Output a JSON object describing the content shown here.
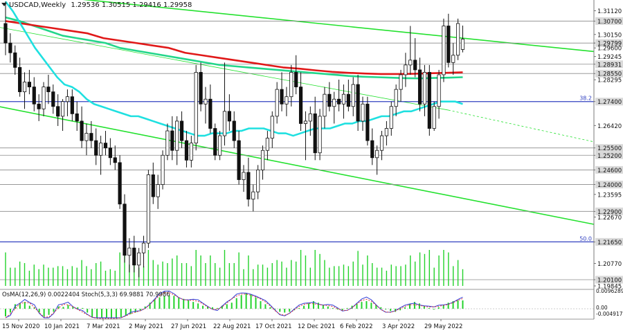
{
  "header": {
    "symbol": "USDCAD",
    "timeframe": "Weekly",
    "ohlc": "1.29536 1.30515 1.29416 1.29958"
  },
  "indicator_header": "OsMA(12,26,9) 0.0022404  Stoch(5,3,3) 69.9881 70.9986",
  "colors": {
    "background": "#ffffff",
    "price_label_bg": "#d9d9d9",
    "ema_fast": "#1fe0e0",
    "ema_mid": "#22d68a",
    "ema_slow": "#e01818",
    "channel": "#23e12e",
    "level_line": "#3040c0",
    "stoch_main": "#2f3bd6",
    "stoch_signal": "#e03030",
    "osma_bar": "#22d22a"
  },
  "chart_data": {
    "type": "candlestick",
    "symbol": "USDCAD",
    "timeframe": "Weekly",
    "ylim": [
      1.19845,
      1.3145
    ],
    "x_tick_labels": [
      "15 Nov 2020",
      "10 Jan 2021",
      "7 Mar 2021",
      "2 May 2021",
      "27 Jun 2021",
      "22 Aug 2021",
      "17 Oct 2021",
      "12 Dec 2021",
      "6 Feb 2022",
      "3 Apr 2022",
      "29 May 2022"
    ],
    "y_tick_labels": [
      "1.31120",
      "1.30700",
      "1.30150",
      "1.29800",
      "1.29799",
      "1.29600",
      "1.29245",
      "1.28931",
      "1.28550",
      "1.28295",
      "1.27400",
      "1.26420",
      "1.25500",
      "1.25200",
      "1.24600",
      "1.24000",
      "1.23595",
      "1.22900",
      "1.22670",
      "1.21650",
      "1.20770",
      "1.20100",
      "1.19845"
    ],
    "highlighted_levels": [
      1.307,
      1.29799,
      1.28931,
      1.2855,
      1.274,
      1.255,
      1.252,
      1.246,
      1.24,
      1.229,
      1.2165,
      1.201
    ],
    "fib_levels": [
      {
        "label": "38.2",
        "value": 1.274
      },
      {
        "label": "50.0",
        "value": 1.2165
      }
    ],
    "ohlc": [
      [
        1.306,
        1.315,
        1.293,
        1.298
      ],
      [
        1.298,
        1.302,
        1.29,
        1.294
      ],
      [
        1.294,
        1.297,
        1.285,
        1.288
      ],
      [
        1.288,
        1.292,
        1.276,
        1.278
      ],
      [
        1.278,
        1.286,
        1.271,
        1.282
      ],
      [
        1.282,
        1.287,
        1.277,
        1.28
      ],
      [
        1.28,
        1.284,
        1.27,
        1.273
      ],
      [
        1.273,
        1.277,
        1.266,
        1.271
      ],
      [
        1.271,
        1.282,
        1.268,
        1.28
      ],
      [
        1.28,
        1.285,
        1.273,
        1.278
      ],
      [
        1.278,
        1.281,
        1.269,
        1.272
      ],
      [
        1.272,
        1.277,
        1.264,
        1.268
      ],
      [
        1.268,
        1.275,
        1.262,
        1.274
      ],
      [
        1.274,
        1.279,
        1.268,
        1.276
      ],
      [
        1.276,
        1.279,
        1.266,
        1.269
      ],
      [
        1.269,
        1.274,
        1.262,
        1.266
      ],
      [
        1.266,
        1.272,
        1.255,
        1.258
      ],
      [
        1.258,
        1.265,
        1.252,
        1.261
      ],
      [
        1.261,
        1.266,
        1.255,
        1.258
      ],
      [
        1.258,
        1.263,
        1.248,
        1.252
      ],
      [
        1.252,
        1.26,
        1.244,
        1.257
      ],
      [
        1.257,
        1.262,
        1.252,
        1.255
      ],
      [
        1.255,
        1.259,
        1.248,
        1.251
      ],
      [
        1.251,
        1.256,
        1.246,
        1.249
      ],
      [
        1.249,
        1.252,
        1.23,
        1.232
      ],
      [
        1.232,
        1.236,
        1.208,
        1.211
      ],
      [
        1.211,
        1.218,
        1.204,
        1.214
      ],
      [
        1.214,
        1.219,
        1.204,
        1.207
      ],
      [
        1.207,
        1.214,
        1.202,
        1.212
      ],
      [
        1.212,
        1.219,
        1.206,
        1.216
      ],
      [
        1.216,
        1.246,
        1.214,
        1.244
      ],
      [
        1.244,
        1.249,
        1.232,
        1.235
      ],
      [
        1.235,
        1.244,
        1.23,
        1.24
      ],
      [
        1.24,
        1.254,
        1.238,
        1.252
      ],
      [
        1.252,
        1.265,
        1.25,
        1.262
      ],
      [
        1.262,
        1.268,
        1.25,
        1.254
      ],
      [
        1.254,
        1.268,
        1.248,
        1.266
      ],
      [
        1.266,
        1.27,
        1.255,
        1.258
      ],
      [
        1.258,
        1.262,
        1.247,
        1.25
      ],
      [
        1.25,
        1.26,
        1.247,
        1.257
      ],
      [
        1.257,
        1.289,
        1.254,
        1.286
      ],
      [
        1.286,
        1.29,
        1.27,
        1.273
      ],
      [
        1.273,
        1.28,
        1.265,
        1.275
      ],
      [
        1.275,
        1.281,
        1.261,
        1.263
      ],
      [
        1.263,
        1.265,
        1.25,
        1.252
      ],
      [
        1.252,
        1.262,
        1.25,
        1.26
      ],
      [
        1.26,
        1.29,
        1.256,
        1.27
      ],
      [
        1.27,
        1.277,
        1.262,
        1.266
      ],
      [
        1.266,
        1.27,
        1.255,
        1.258
      ],
      [
        1.258,
        1.262,
        1.24,
        1.242
      ],
      [
        1.242,
        1.248,
        1.237,
        1.245
      ],
      [
        1.245,
        1.251,
        1.231,
        1.234
      ],
      [
        1.234,
        1.24,
        1.229,
        1.237
      ],
      [
        1.237,
        1.248,
        1.234,
        1.246
      ],
      [
        1.246,
        1.256,
        1.242,
        1.254
      ],
      [
        1.254,
        1.262,
        1.25,
        1.259
      ],
      [
        1.259,
        1.27,
        1.255,
        1.268
      ],
      [
        1.268,
        1.282,
        1.265,
        1.279
      ],
      [
        1.279,
        1.286,
        1.27,
        1.273
      ],
      [
        1.273,
        1.28,
        1.268,
        1.276
      ],
      [
        1.276,
        1.289,
        1.272,
        1.286
      ],
      [
        1.286,
        1.293,
        1.277,
        1.28
      ],
      [
        1.28,
        1.286,
        1.262,
        1.265
      ],
      [
        1.265,
        1.27,
        1.25,
        1.266
      ],
      [
        1.266,
        1.272,
        1.26,
        1.269
      ],
      [
        1.269,
        1.276,
        1.25,
        1.253
      ],
      [
        1.253,
        1.271,
        1.25,
        1.268
      ],
      [
        1.268,
        1.28,
        1.263,
        1.277
      ],
      [
        1.277,
        1.282,
        1.27,
        1.272
      ],
      [
        1.272,
        1.278,
        1.265,
        1.275
      ],
      [
        1.275,
        1.283,
        1.27,
        1.273
      ],
      [
        1.273,
        1.281,
        1.267,
        1.277
      ],
      [
        1.277,
        1.283,
        1.27,
        1.272
      ],
      [
        1.272,
        1.284,
        1.268,
        1.281
      ],
      [
        1.281,
        1.285,
        1.262,
        1.266
      ],
      [
        1.266,
        1.276,
        1.262,
        1.273
      ],
      [
        1.273,
        1.276,
        1.256,
        1.258
      ],
      [
        1.258,
        1.263,
        1.248,
        1.251
      ],
      [
        1.251,
        1.256,
        1.244,
        1.254
      ],
      [
        1.254,
        1.262,
        1.25,
        1.26
      ],
      [
        1.26,
        1.266,
        1.256,
        1.263
      ],
      [
        1.263,
        1.274,
        1.26,
        1.272
      ],
      [
        1.272,
        1.281,
        1.268,
        1.279
      ],
      [
        1.279,
        1.287,
        1.274,
        1.285
      ],
      [
        1.285,
        1.294,
        1.28,
        1.289
      ],
      [
        1.289,
        1.305,
        1.285,
        1.291
      ],
      [
        1.291,
        1.3,
        1.284,
        1.287
      ],
      [
        1.287,
        1.292,
        1.27,
        1.273
      ],
      [
        1.273,
        1.289,
        1.268,
        1.286
      ],
      [
        1.286,
        1.289,
        1.26,
        1.263
      ],
      [
        1.263,
        1.274,
        1.262,
        1.272
      ],
      [
        1.272,
        1.287,
        1.267,
        1.285
      ],
      [
        1.285,
        1.308,
        1.282,
        1.305
      ],
      [
        1.305,
        1.31,
        1.288,
        1.29
      ],
      [
        1.29,
        1.298,
        1.285,
        1.293
      ],
      [
        1.293,
        1.308,
        1.291,
        1.306
      ],
      [
        1.29536,
        1.30515,
        1.29416,
        1.29958
      ]
    ],
    "ema_fast_values": [
      1.315,
      1.311,
      1.306,
      1.301,
      1.296,
      1.292,
      1.288,
      1.284,
      1.281,
      1.28,
      1.278,
      1.275,
      1.273,
      1.272,
      1.271,
      1.27,
      1.269,
      1.268,
      1.268,
      1.267,
      1.266,
      1.265,
      1.264,
      1.263,
      1.262,
      1.261,
      1.26,
      1.26,
      1.261,
      1.261,
      1.261,
      1.262,
      1.262,
      1.263,
      1.263,
      1.263,
      1.262,
      1.261,
      1.261,
      1.26,
      1.261,
      1.262,
      1.263,
      1.263,
      1.263,
      1.264,
      1.265,
      1.265,
      1.266,
      1.266,
      1.267,
      1.268,
      1.268,
      1.269,
      1.27,
      1.27,
      1.271,
      1.272,
      1.273,
      1.274,
      1.274,
      1.274,
      1.273
    ],
    "ema_mid_values": [
      1.3085,
      1.307,
      1.305,
      1.303,
      1.301,
      1.3,
      1.299,
      1.298,
      1.296,
      1.295,
      1.294,
      1.293,
      1.292,
      1.291,
      1.29,
      1.289,
      1.2885,
      1.288,
      1.2875,
      1.287,
      1.2865,
      1.286,
      1.2855,
      1.285,
      1.2845,
      1.2842,
      1.284,
      1.2838,
      1.2836,
      1.2835,
      1.2837,
      1.2838,
      1.284
    ],
    "ema_slow_values": [
      1.307,
      1.306,
      1.305,
      1.304,
      1.303,
      1.302,
      1.3,
      1.299,
      1.298,
      1.297,
      1.296,
      1.294,
      1.293,
      1.292,
      1.291,
      1.29,
      1.289,
      1.288,
      1.2875,
      1.2868,
      1.2862,
      1.2858,
      1.2855,
      1.2853,
      1.2853,
      1.2854,
      1.2856,
      1.2858,
      1.286
    ],
    "osma_values": [
      -0.002,
      -0.001,
      0.0012,
      0.0015,
      0.0018,
      0.0008,
      0.0004,
      -0.001,
      -0.002,
      -0.0016,
      -0.0008,
      0.0006,
      0.0005,
      0.001,
      0.0005,
      0.0004,
      0.0002,
      -0.001,
      -0.0022,
      -0.0026,
      -0.0028,
      -0.003,
      -0.0031,
      -0.0028,
      -0.0022,
      -0.0018,
      -0.0014,
      -0.001,
      -0.0004,
      0.0006,
      0.0016,
      0.0024,
      0.003,
      0.0033,
      0.0035,
      0.0034,
      0.003,
      0.0026,
      0.0022,
      0.0018,
      0.0014,
      0.0008,
      0.0006,
      0.0004,
      0.0002,
      0.0008,
      0.0012,
      0.0016,
      0.0028,
      0.0036,
      0.004,
      0.0038,
      0.003,
      0.002,
      0.0012,
      0.0004,
      -0.0002,
      -0.0008,
      -0.001,
      -0.0008,
      -0.0004,
      0.0002,
      0.0008,
      0.0014,
      0.002,
      0.0016,
      0.001,
      0.0006,
      0.0002,
      -0.0002,
      -0.0004,
      0.0002,
      0.0008,
      0.0014,
      0.0018,
      0.002,
      0.0016,
      0.001,
      0.0004,
      -0.0002,
      -0.0006,
      -0.0008,
      -0.0004,
      0.0004,
      0.0012,
      0.0018,
      0.0014,
      0.0008,
      0.0002,
      -0.0002,
      0.0004,
      0.001,
      0.0016,
      0.002,
      0.0022,
      0.0022
    ],
    "osma_axis_labels": [
      "0.0096289",
      "0.00",
      "-0.004917"
    ]
  }
}
